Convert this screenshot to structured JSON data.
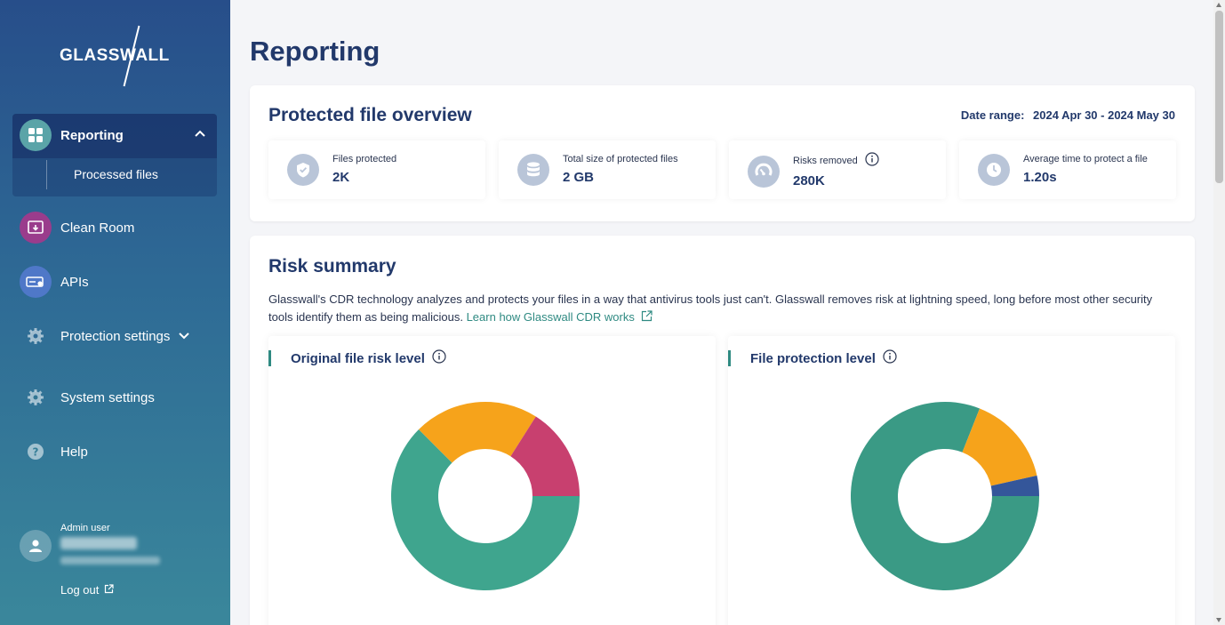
{
  "sidebar": {
    "logo_text": "GLASSWALL",
    "nav": {
      "reporting": "Reporting",
      "processed_files": "Processed files",
      "clean_room": "Clean Room",
      "apis": "APIs",
      "protection_settings": "Protection settings",
      "system_settings": "System settings",
      "help": "Help"
    },
    "user": {
      "role": "Admin user",
      "logout": "Log out"
    }
  },
  "page": {
    "title": "Reporting"
  },
  "overview": {
    "title": "Protected file overview",
    "date_range_label": "Date range:",
    "date_range_value": "2024 Apr 30 - 2024 May 30",
    "stats": [
      {
        "label": "Files protected",
        "value": "2K",
        "icon": "shield-check-icon"
      },
      {
        "label": "Total size of protected files",
        "value": "2 GB",
        "icon": "database-icon"
      },
      {
        "label": "Risks removed",
        "value": "280K",
        "icon": "gauge-icon"
      },
      {
        "label": "Average time to protect a file",
        "value": "1.20s",
        "icon": "clock-icon"
      }
    ]
  },
  "risk_summary": {
    "title": "Risk summary",
    "description": "Glasswall's CDR technology analyzes and protects your files in a way that antivirus tools just can't. Glasswall removes risk at lightning speed, long before most other security tools identify them as being malicious.",
    "link_text": "Learn how Glasswall CDR works",
    "charts": [
      {
        "title": "Original file risk level"
      },
      {
        "title": "File protection level"
      }
    ]
  },
  "chart_data": [
    {
      "type": "pie",
      "title": "Original file risk level",
      "slices": [
        {
          "value": 62.5,
          "color": "#3fa58e"
        },
        {
          "value": 21.5,
          "color": "#f6a31b"
        },
        {
          "value": 16.0,
          "color": "#c8406f"
        }
      ]
    },
    {
      "type": "pie",
      "title": "File protection level",
      "slices": [
        {
          "value": 81.0,
          "color": "#3a9a85"
        },
        {
          "value": 15.5,
          "color": "#f6a31b"
        },
        {
          "value": 3.5,
          "color": "#34569a"
        }
      ]
    }
  ]
}
